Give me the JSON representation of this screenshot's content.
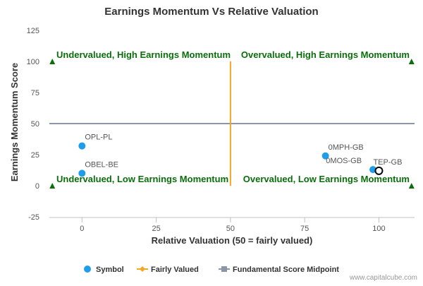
{
  "chart_data": {
    "type": "scatter",
    "title": "Earnings Momentum Vs Relative Valuation",
    "xlabel": "Relative Valuation (50 = fairly valued)",
    "ylabel": "Earnings Momentum Score",
    "xlim": [
      -11,
      112
    ],
    "ylim": [
      -25,
      125
    ],
    "x_ticks": [
      0,
      25,
      50,
      75,
      100
    ],
    "y_ticks": [
      -25,
      0,
      25,
      50,
      75,
      100,
      125
    ],
    "grid": false,
    "legend_position": "bottom",
    "colors": {
      "symbol": "#1f9ded",
      "fairly_valued": "#f5a623",
      "midpoint": "#8c96a6",
      "quadrant_label": "#0a6e0a",
      "corner_marker": "#0a6e0a",
      "axis": "#333333"
    },
    "points": [
      {
        "label": "OPL-PL",
        "x": 0,
        "y": 32,
        "highlight": false
      },
      {
        "label": "OBEL-BE",
        "x": 0,
        "y": 10,
        "highlight": false
      },
      {
        "label": "0MPH-GB",
        "x": 82,
        "y": 24,
        "highlight": false
      },
      {
        "label": "0MOS-GB",
        "x": 98,
        "y": 13,
        "highlight": false
      },
      {
        "label": "TEP-GB",
        "x": 100,
        "y": 12,
        "highlight": true
      }
    ],
    "fairly_valued_line": {
      "x": 50,
      "y_from": 0,
      "y_to": 100
    },
    "midpoint_line": {
      "y": 50
    },
    "corner_markers": [
      {
        "x": -10,
        "y": 100
      },
      {
        "x": 111,
        "y": 100
      },
      {
        "x": -10,
        "y": 0
      },
      {
        "x": 111,
        "y": 0
      }
    ],
    "quadrant_labels": [
      {
        "text": "Undervalued, High Earnings Momentum",
        "anchor": "left",
        "y": 100
      },
      {
        "text": "Overvalued, High Earnings Momentum",
        "anchor": "right",
        "y": 100
      },
      {
        "text": "Undervalued, Low Earnings Momentum",
        "anchor": "left",
        "y": 0
      },
      {
        "text": "Overvalued, Low Earnings Momentum",
        "anchor": "right",
        "y": 0
      }
    ],
    "legend": [
      {
        "name": "Symbol",
        "marker": "circle"
      },
      {
        "name": "Fairly Valued",
        "marker": "line-diamond"
      },
      {
        "name": "Fundamental Score Midpoint",
        "marker": "line-square"
      }
    ]
  },
  "credit": "www.capitalcube.com"
}
